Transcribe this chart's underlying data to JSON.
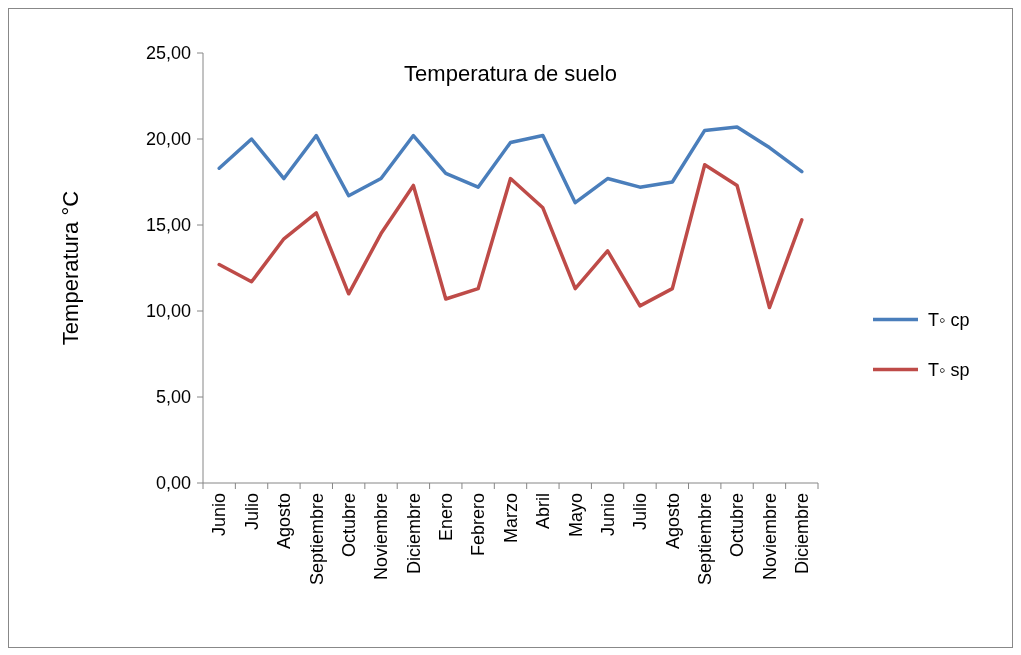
{
  "chart_data": {
    "type": "line",
    "title": "Temperatura de suelo",
    "ylabel": "Temperatura  °C",
    "categories": [
      "Junio",
      "Julio",
      "Agosto",
      "Septiembre",
      "Octubre",
      "Noviembre",
      "Diciembre",
      "Enero",
      "Febrero",
      "Marzo",
      "Abril",
      "Mayo",
      "Junio",
      "Julio",
      "Agosto",
      "Septiembre",
      "Octubre",
      "Noviembre",
      "Diciembre"
    ],
    "series": [
      {
        "name": "T◦  cp",
        "color": "#4a7ebb",
        "values": [
          18.3,
          20.0,
          17.7,
          20.2,
          16.7,
          17.7,
          20.2,
          18.0,
          17.2,
          19.8,
          20.2,
          16.3,
          17.7,
          17.2,
          17.5,
          20.5,
          20.7,
          19.5,
          18.1
        ]
      },
      {
        "name": "T◦  sp",
        "color": "#be4b48",
        "values": [
          12.7,
          11.7,
          14.2,
          15.7,
          11.0,
          14.5,
          17.3,
          10.7,
          11.3,
          17.7,
          16.0,
          11.3,
          13.5,
          10.3,
          11.3,
          18.5,
          17.3,
          10.2,
          15.3
        ]
      }
    ],
    "ylim": [
      0,
      25
    ],
    "yticks": [
      {
        "value": 0,
        "label": "0,00"
      },
      {
        "value": 5,
        "label": "5,00"
      },
      {
        "value": 10,
        "label": "10,00"
      },
      {
        "value": 15,
        "label": "15,00"
      },
      {
        "value": 20,
        "label": "20,00"
      },
      {
        "value": 25,
        "label": "25,00"
      }
    ],
    "grid": false,
    "legend": "right",
    "marker": "none",
    "line_style": "solid"
  }
}
